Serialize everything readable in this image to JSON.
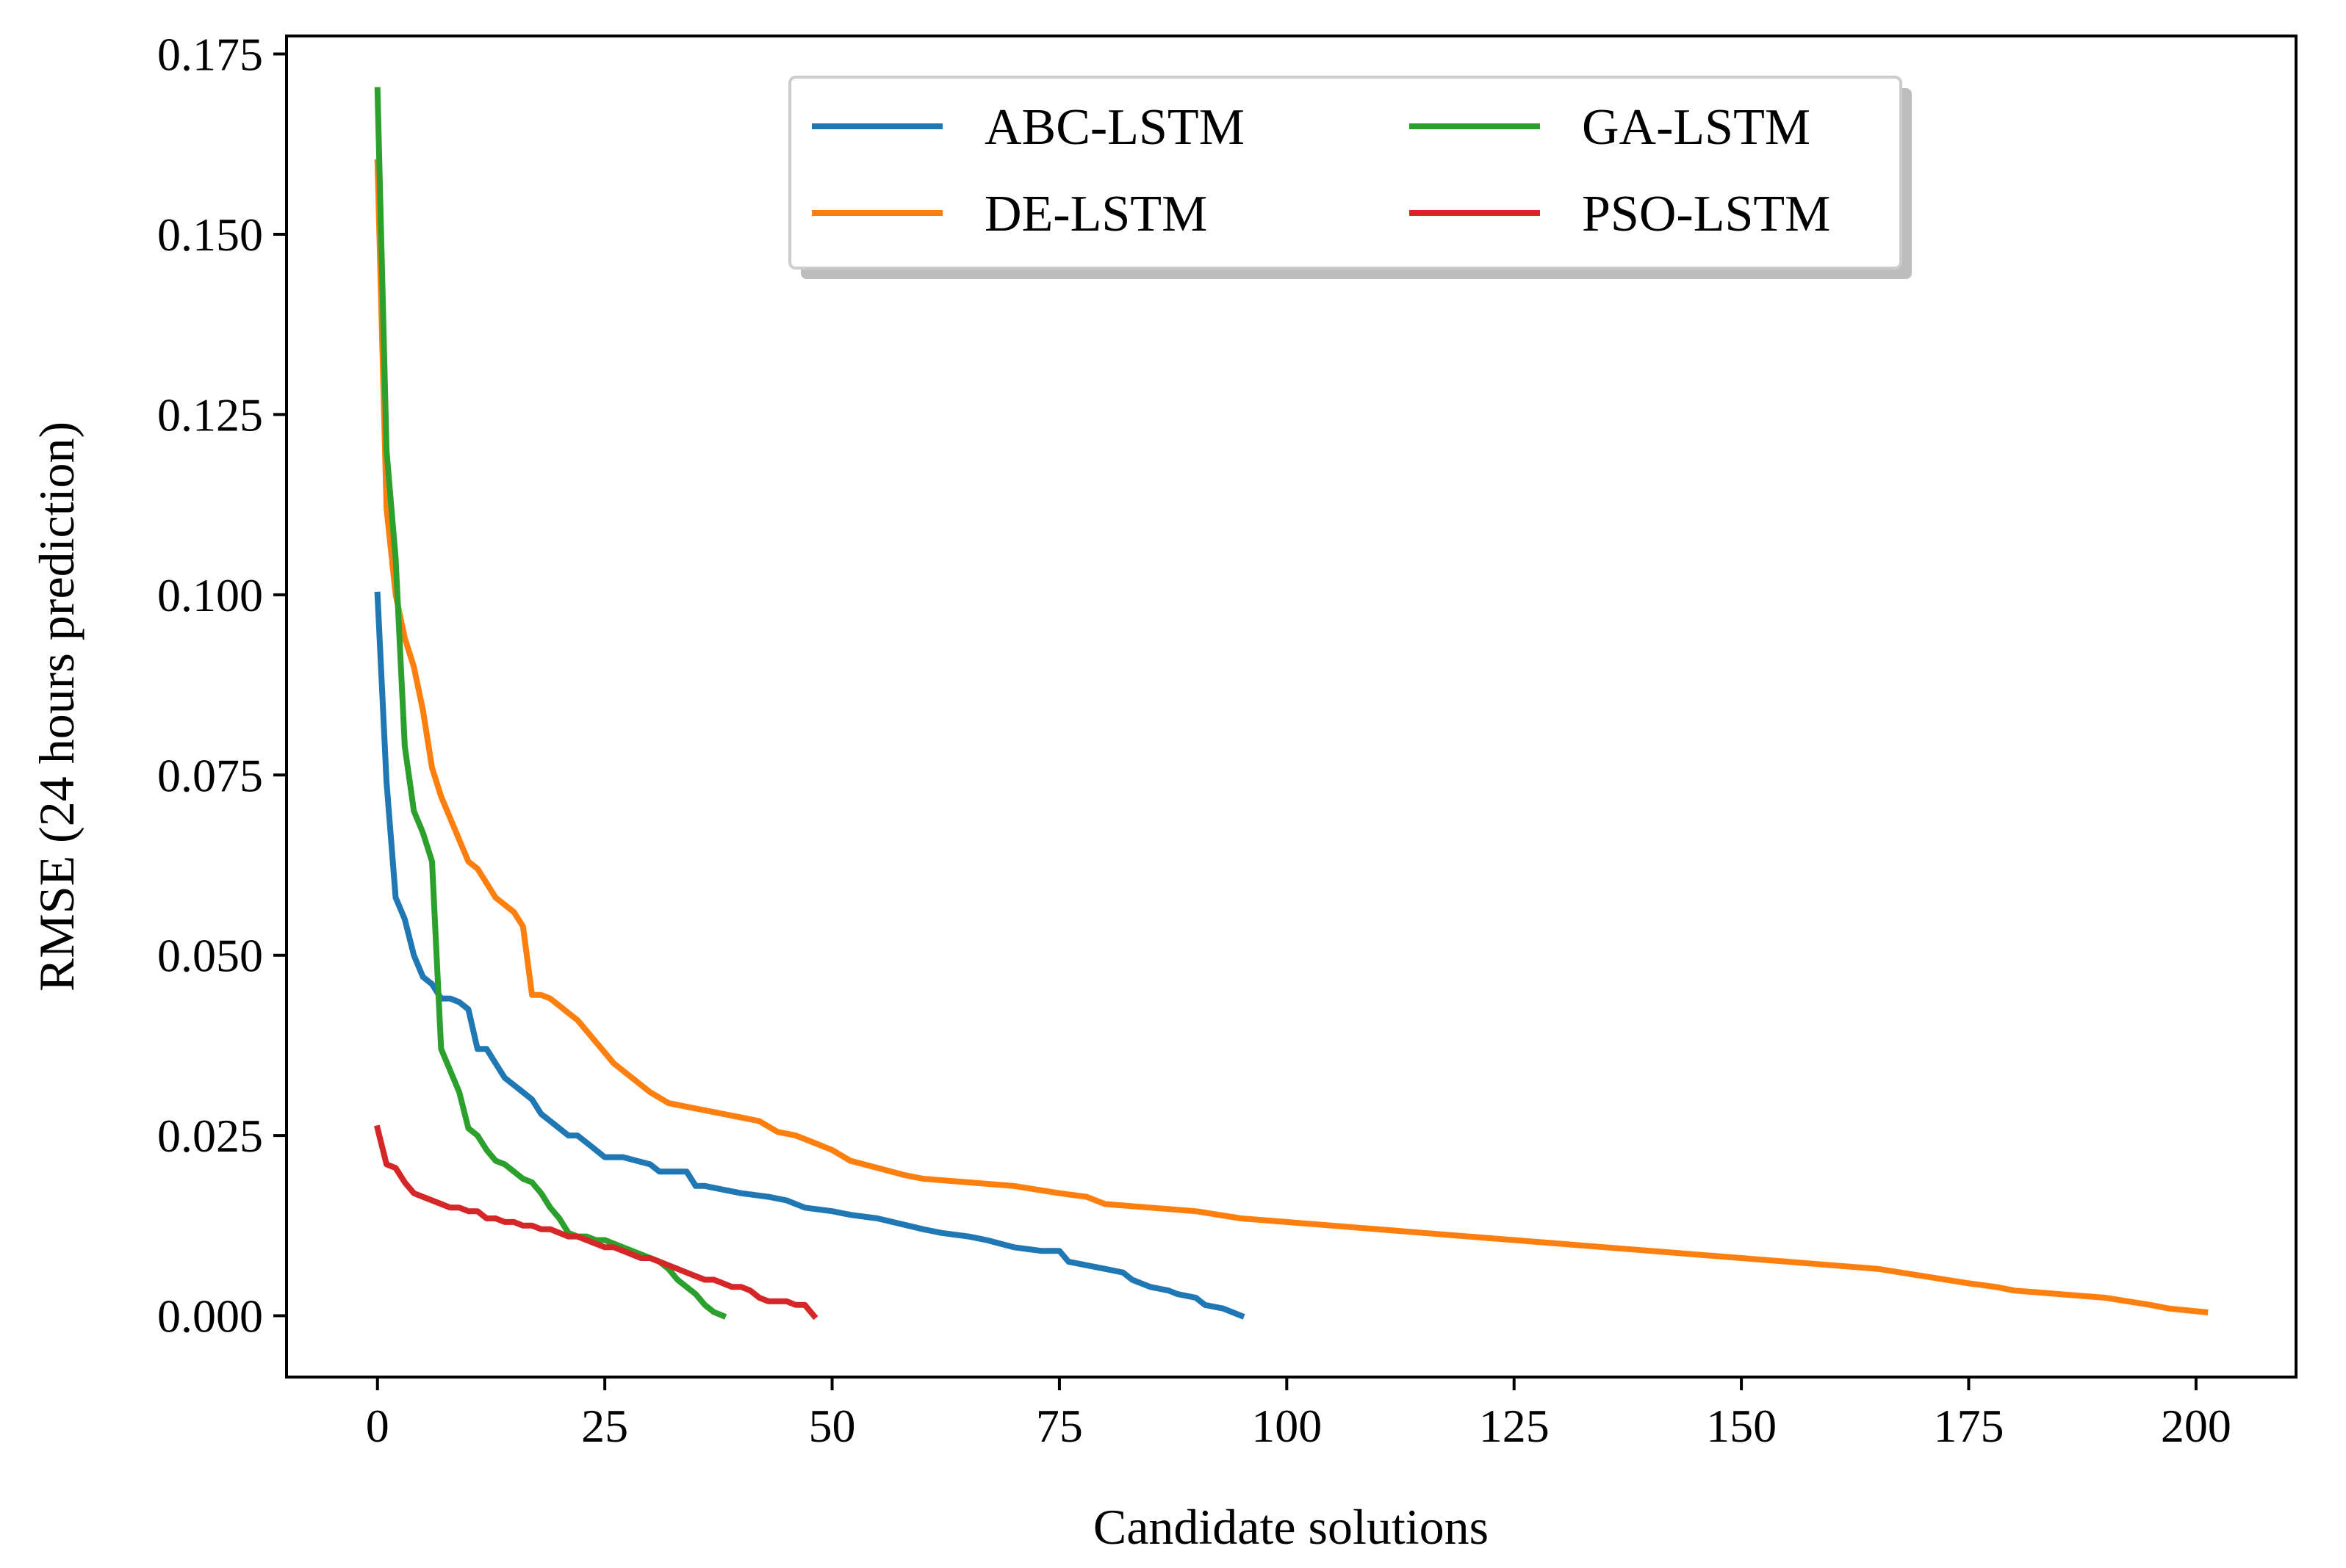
{
  "chart_data": {
    "type": "line",
    "title": "",
    "xlabel": "Candidate solutions",
    "ylabel": "RMSE (24 hours prediction)",
    "xlim": [
      -10,
      211
    ],
    "ylim": [
      -0.0085,
      0.1775
    ],
    "xticks": [
      0,
      25,
      50,
      75,
      100,
      125,
      150,
      175,
      200
    ],
    "xtick_labels": [
      "0",
      "25",
      "50",
      "75",
      "100",
      "125",
      "150",
      "175",
      "200"
    ],
    "yticks": [
      0.0,
      0.025,
      0.05,
      0.075,
      0.1,
      0.125,
      0.15,
      0.175
    ],
    "ytick_labels": [
      "0.000",
      "0.025",
      "0.050",
      "0.075",
      "0.100",
      "0.125",
      "0.150",
      "0.175"
    ],
    "grid": false,
    "legend": {
      "position": "top-center",
      "columns": 2
    },
    "series": [
      {
        "name": "ABC-LSTM",
        "color": "#1f77b4",
        "x": [
          0,
          1,
          2,
          3,
          4,
          5,
          6,
          7,
          8,
          9,
          10,
          11,
          12,
          13,
          14,
          15,
          16,
          17,
          18,
          19,
          20,
          21,
          22,
          23,
          24,
          25,
          27,
          30,
          31,
          34,
          35,
          36,
          38,
          40,
          43,
          45,
          47,
          50,
          52,
          55,
          60,
          62,
          65,
          67,
          70,
          73,
          75,
          76,
          78,
          80,
          82,
          83,
          85,
          87,
          88,
          90,
          91,
          93,
          94,
          95
        ],
        "values": [
          0.1,
          0.074,
          0.058,
          0.055,
          0.05,
          0.047,
          0.046,
          0.044,
          0.044,
          0.0435,
          0.0425,
          0.037,
          0.037,
          0.035,
          0.033,
          0.032,
          0.031,
          0.03,
          0.028,
          0.027,
          0.026,
          0.025,
          0.025,
          0.024,
          0.023,
          0.022,
          0.022,
          0.021,
          0.02,
          0.02,
          0.018,
          0.018,
          0.0175,
          0.017,
          0.0165,
          0.016,
          0.015,
          0.0145,
          0.014,
          0.0135,
          0.012,
          0.0115,
          0.011,
          0.0105,
          0.0095,
          0.009,
          0.009,
          0.0075,
          0.007,
          0.0065,
          0.006,
          0.005,
          0.004,
          0.0035,
          0.003,
          0.0025,
          0.0015,
          0.001,
          0.0005,
          0.0
        ]
      },
      {
        "name": "DE-LSTM",
        "color": "#ff7f0e",
        "x": [
          0,
          1,
          2,
          3,
          4,
          5,
          6,
          7,
          8,
          9,
          10,
          11,
          12,
          13,
          14,
          15,
          16,
          17,
          18,
          19,
          20,
          21,
          22,
          24,
          26,
          28,
          30,
          32,
          34,
          36,
          38,
          40,
          42,
          44,
          46,
          48,
          50,
          52,
          55,
          58,
          60,
          65,
          70,
          75,
          78,
          80,
          85,
          90,
          95,
          100,
          105,
          110,
          115,
          120,
          125,
          130,
          135,
          140,
          145,
          150,
          155,
          160,
          165,
          170,
          175,
          178,
          180,
          185,
          190,
          195,
          197,
          201
        ],
        "values": [
          0.16,
          0.112,
          0.1,
          0.094,
          0.09,
          0.084,
          0.076,
          0.072,
          0.069,
          0.066,
          0.063,
          0.062,
          0.06,
          0.058,
          0.057,
          0.056,
          0.054,
          0.0445,
          0.0445,
          0.044,
          0.043,
          0.042,
          0.041,
          0.038,
          0.035,
          0.033,
          0.031,
          0.0295,
          0.029,
          0.0285,
          0.028,
          0.0275,
          0.027,
          0.0255,
          0.025,
          0.024,
          0.023,
          0.0215,
          0.0205,
          0.0195,
          0.019,
          0.0185,
          0.018,
          0.017,
          0.0165,
          0.0155,
          0.015,
          0.0145,
          0.0135,
          0.013,
          0.0125,
          0.012,
          0.0115,
          0.011,
          0.0105,
          0.01,
          0.0095,
          0.009,
          0.0085,
          0.008,
          0.0075,
          0.007,
          0.0065,
          0.0055,
          0.0045,
          0.004,
          0.0035,
          0.003,
          0.0025,
          0.0015,
          0.001,
          0.0005
        ]
      },
      {
        "name": "GA-LSTM",
        "color": "#2ca02c",
        "x": [
          0,
          1,
          2,
          3,
          4,
          5,
          6,
          7,
          8,
          9,
          10,
          11,
          12,
          13,
          14,
          15,
          16,
          17,
          18,
          19,
          20,
          21,
          22,
          23,
          24,
          25,
          26,
          27,
          28,
          29,
          30,
          31,
          32,
          33,
          34,
          35,
          36,
          37,
          38
        ],
        "values": [
          0.17,
          0.12,
          0.105,
          0.079,
          0.07,
          0.067,
          0.063,
          0.037,
          0.034,
          0.031,
          0.026,
          0.025,
          0.023,
          0.0215,
          0.021,
          0.02,
          0.019,
          0.0185,
          0.017,
          0.015,
          0.0135,
          0.0115,
          0.011,
          0.011,
          0.0105,
          0.0105,
          0.01,
          0.0095,
          0.009,
          0.0085,
          0.008,
          0.0075,
          0.0065,
          0.005,
          0.004,
          0.003,
          0.0015,
          0.0005,
          0.0
        ]
      },
      {
        "name": "PSO-LSTM",
        "color": "#d62728",
        "x": [
          0,
          1,
          2,
          3,
          4,
          5,
          6,
          7,
          8,
          9,
          10,
          11,
          12,
          13,
          14,
          15,
          16,
          17,
          18,
          19,
          20,
          21,
          22,
          23,
          24,
          25,
          26,
          27,
          28,
          29,
          30,
          31,
          32,
          33,
          34,
          35,
          36,
          37,
          38,
          39,
          40,
          41,
          42,
          43,
          44,
          45,
          46,
          47,
          48
        ],
        "values": [
          0.026,
          0.021,
          0.0205,
          0.0185,
          0.017,
          0.0165,
          0.016,
          0.0155,
          0.015,
          0.015,
          0.0145,
          0.0145,
          0.0135,
          0.0135,
          0.013,
          0.013,
          0.0125,
          0.0125,
          0.012,
          0.012,
          0.0115,
          0.011,
          0.011,
          0.0105,
          0.01,
          0.0095,
          0.0095,
          0.009,
          0.0085,
          0.008,
          0.008,
          0.0075,
          0.007,
          0.0065,
          0.006,
          0.0055,
          0.005,
          0.005,
          0.0045,
          0.004,
          0.004,
          0.0035,
          0.0025,
          0.002,
          0.002,
          0.002,
          0.0015,
          0.0015,
          0.0
        ]
      }
    ]
  }
}
